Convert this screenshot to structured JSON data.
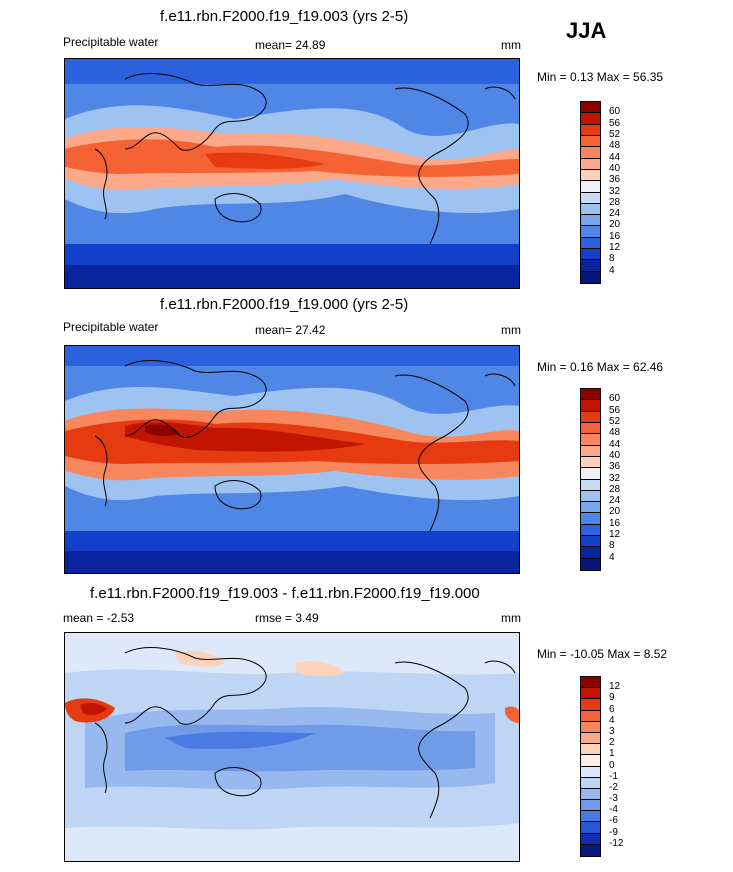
{
  "season": "JJA",
  "panels": [
    {
      "title": "f.e11.rbn.F2000.f19_f19.003 (yrs 2-5)",
      "left_label": "Precipitable water",
      "center_label": "mean=  24.89",
      "units": "mm",
      "minmax": "Min =   0.13 Max =  56.35",
      "colorbar_labels": [
        "60",
        "56",
        "52",
        "48",
        "44",
        "40",
        "36",
        "32",
        "28",
        "24",
        "20",
        "16",
        "12",
        "8",
        "4"
      ],
      "colorbar_colors": [
        "#8c0000",
        "#c21500",
        "#e63a10",
        "#f56234",
        "#f8875e",
        "#fba98a",
        "#fdd2bb",
        "#eef0f6",
        "#c7dcf5",
        "#9fc3f1",
        "#78a6ec",
        "#5086e6",
        "#2c62de",
        "#1240c8",
        "#0a239e",
        "#06157a"
      ]
    },
    {
      "title": "f.e11.rbn.F2000.f19_f19.000 (yrs 2-5)",
      "left_label": "Precipitable water",
      "center_label": "mean=  27.42",
      "units": "mm",
      "minmax": "Min =   0.16 Max =  62.46",
      "colorbar_labels": [
        "60",
        "56",
        "52",
        "48",
        "44",
        "40",
        "36",
        "32",
        "28",
        "24",
        "20",
        "16",
        "12",
        "8",
        "4"
      ],
      "colorbar_colors": [
        "#8c0000",
        "#c21500",
        "#e63a10",
        "#f56234",
        "#f8875e",
        "#fba98a",
        "#fdd2bb",
        "#eef0f6",
        "#c7dcf5",
        "#9fc3f1",
        "#78a6ec",
        "#5086e6",
        "#2c62de",
        "#1240c8",
        "#0a239e",
        "#06157a"
      ]
    },
    {
      "title": "f.e11.rbn.F2000.f19_f19.003 - f.e11.rbn.F2000.f19_f19.000",
      "left_label": "mean =  -2.53",
      "center_label": "rmse =   3.49",
      "units": "mm",
      "minmax": "Min = -10.05 Max =   8.52",
      "colorbar_labels": [
        "12",
        "9",
        "6",
        "4",
        "3",
        "2",
        "1",
        "0",
        "-1",
        "-2",
        "-3",
        "-4",
        "-6",
        "-9",
        "-12"
      ],
      "colorbar_colors": [
        "#8c0000",
        "#c21500",
        "#e63a10",
        "#f56234",
        "#f8875e",
        "#fba98a",
        "#fdd2bb",
        "#fdeee4",
        "#dde9f8",
        "#bfd5f4",
        "#97b9ef",
        "#6f9be9",
        "#4a7be3",
        "#2655d6",
        "#0f2fb0",
        "#061a82"
      ]
    }
  ]
}
